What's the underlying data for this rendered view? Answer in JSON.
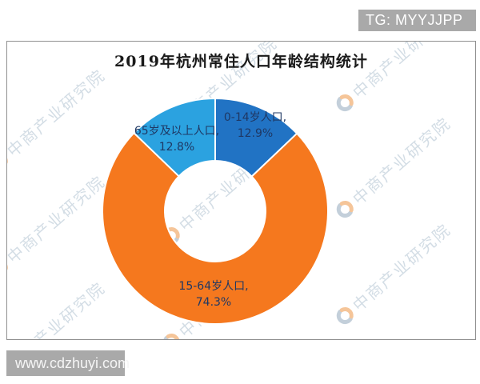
{
  "overlays": {
    "tg_badge": "TG: MYYJJPP",
    "site_badge": "www.cdzhuyi.com"
  },
  "watermark": {
    "text": "中商产业研究院",
    "logo": "pie-logo",
    "color": "#b9c9d6"
  },
  "chart_data": {
    "type": "pie",
    "subtype": "donut",
    "title": "2019年杭州常住人口年龄结构统计",
    "unit": "%",
    "start_angle_deg": 0,
    "clockwise": true,
    "inner_radius_ratio": 0.45,
    "legend": "none",
    "label_color": "#1F3864",
    "slices": [
      {
        "label": "0-14岁人口",
        "value": 12.9,
        "color": "#2173C4",
        "label_text": "0-14岁人口,",
        "value_text": "12.9%"
      },
      {
        "label": "15-64岁人口",
        "value": 74.3,
        "color": "#F5781E",
        "label_text": "15-64岁人口,",
        "value_text": "74.3%"
      },
      {
        "label": "65岁及以上人口",
        "value": 12.8,
        "color": "#2BA2E0",
        "label_text": "65岁及以上人口,",
        "value_text": "12.8%"
      }
    ]
  }
}
